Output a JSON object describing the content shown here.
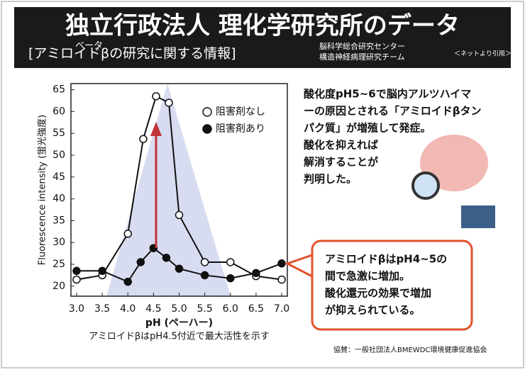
{
  "header": {
    "title": "独立行政法人 理化学研究所のデータ",
    "subtitle": "[アミロイドβの研究に関する情報]",
    "ruby": "ベータ",
    "org": [
      "脳科学総合研究センター",
      "構造神経病理研究チーム"
    ],
    "source": "＜ネットより引用＞"
  },
  "chart_data": {
    "type": "line",
    "ylabel": "Fluorescence intensity (蛍光強度)",
    "xlabel": "pH (ペーハー)",
    "caption": "アミロイドβはpH4.5付近で最大活性を示す",
    "xlim": [
      2.89,
      7.11
    ],
    "ylim": [
      17.7,
      66.4
    ],
    "xticks": [
      {
        "value": 3,
        "label": "3.0"
      },
      3.5,
      {
        "value": 4,
        "label": "4.0"
      },
      4.5,
      {
        "value": 5,
        "label": "5.0"
      },
      5.5,
      {
        "value": 6,
        "label": "6.0"
      },
      6.5,
      {
        "value": 7,
        "label": "7.0"
      }
    ],
    "yticks": [
      20,
      25,
      30,
      35,
      40,
      45,
      50,
      55,
      60,
      65
    ],
    "series": [
      {
        "name": "阻害剤なし",
        "color": "#111111",
        "marker": "open",
        "x": [
          3.0,
          3.5,
          4.0,
          4.3,
          4.55,
          4.8,
          5.0,
          5.5,
          6.0,
          6.5,
          7.0
        ],
        "values": [
          21.5,
          22.5,
          32,
          53.7,
          63.5,
          62,
          36.3,
          25.5,
          25.5,
          22.3,
          21.5
        ]
      },
      {
        "name": "阻害剤あり",
        "color": "#111111",
        "marker": "filled",
        "x": [
          3.0,
          3.5,
          4.0,
          4.25,
          4.5,
          4.75,
          5.0,
          5.5,
          6.0,
          6.5,
          7.0
        ],
        "values": [
          23.5,
          23.5,
          21,
          25.5,
          28.7,
          26.5,
          24,
          22.5,
          21.8,
          23,
          25.2
        ]
      }
    ]
  },
  "text": {
    "lines": [
      "酸化度pH5~6で脳内アルツハイマ",
      "ーの原因とされる「アミロイドβタン",
      "パク質」が増殖して発症。",
      "酸化を抑えれば",
      "解消することが",
      "判明した。"
    ]
  },
  "callout": {
    "lines": [
      "アミロイドβはpH4~5の",
      "間で急激に増加。",
      "酸化還元の効果で増加",
      "が抑えられている。"
    ]
  },
  "footer": "協賛：一般社団法人BMEWDC環境健康促進協会"
}
